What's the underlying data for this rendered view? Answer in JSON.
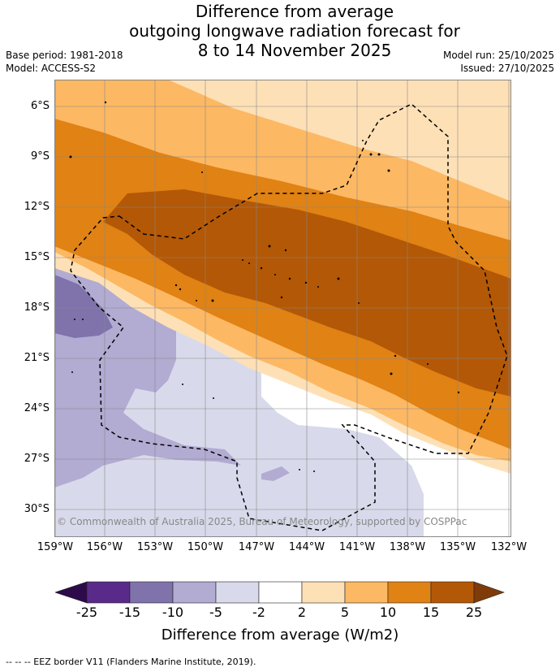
{
  "title": {
    "line1": "Difference from average",
    "line2": "outgoing longwave radiation forecast for",
    "line3": "8 to 14 November 2025"
  },
  "meta": {
    "base_period": "Base period: 1981-2018",
    "model": "Model: ACCESS-S2",
    "model_run": "Model run: 25/10/2025",
    "issued": "Issued: 27/10/2025"
  },
  "map": {
    "lat_labels": [
      "6°S",
      "9°S",
      "12°S",
      "15°S",
      "18°S",
      "21°S",
      "24°S",
      "27°S",
      "30°S"
    ],
    "lon_labels": [
      "159°W",
      "156°W",
      "153°W",
      "150°W",
      "147°W",
      "144°W",
      "141°W",
      "138°W",
      "135°W",
      "132°W"
    ],
    "copyright": "© Commonwealth of Australia 2025, Bureau of Meteorology, supported by COSPPac"
  },
  "colorbar": {
    "ticks": [
      "-25",
      "-15",
      "-10",
      "-5",
      "-2",
      "2",
      "5",
      "10",
      "15",
      "25"
    ],
    "colors": {
      "below_-25": "#2d0b4a",
      "-25_-15": "#5a2a8a",
      "-15_-10": "#8073ac",
      "-10_-5": "#b2abd2",
      "-5_-2": "#d8daeb",
      "-2_2": "#ffffff",
      "2_5": "#fee0b6",
      "5_10": "#fdb863",
      "10_15": "#e08214",
      "15_25": "#b35806",
      "above_25": "#7f3b08"
    },
    "label": "Difference from average (W/m2)"
  },
  "footnote": "--  --  -- EEZ border V11 (Flanders Marine Institute, 2019)."
}
